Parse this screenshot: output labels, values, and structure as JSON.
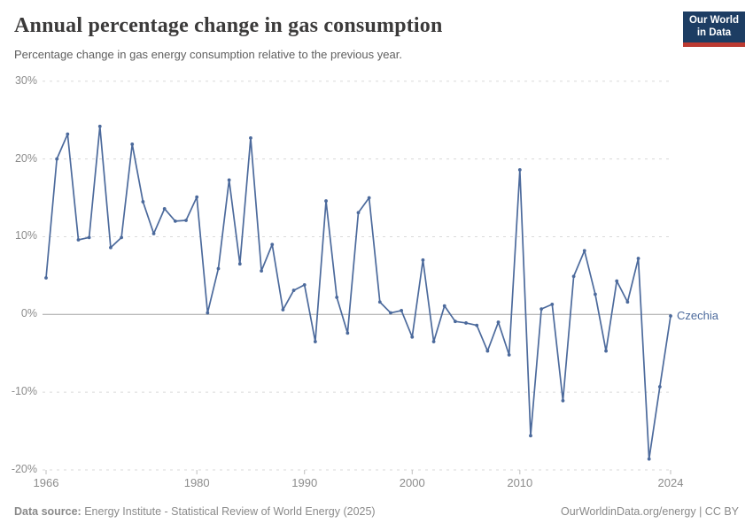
{
  "header": {
    "title": "Annual percentage change in gas consumption",
    "subtitle": "Percentage change in gas energy consumption relative to the previous year.",
    "logo": {
      "line1": "Our World",
      "line2": "in Data"
    }
  },
  "chart_data": {
    "type": "line",
    "title": "Annual percentage change in gas consumption",
    "subtitle": "Percentage change in gas energy consumption relative to the previous year.",
    "xlim": [
      1966,
      2024
    ],
    "ylim": [
      -20,
      30
    ],
    "yticks": [
      30,
      20,
      10,
      0,
      -10,
      -20
    ],
    "ytick_suffix": "%",
    "xticks": [
      1966,
      1980,
      1990,
      2000,
      2010,
      2024
    ],
    "grid": "horizontal-dashed, solid zero line",
    "legend_position": "end-of-line label",
    "series": [
      {
        "name": "Czechia",
        "color": "#4C6A9C",
        "x": [
          1966,
          1967,
          1968,
          1969,
          1970,
          1971,
          1972,
          1973,
          1974,
          1975,
          1976,
          1977,
          1978,
          1979,
          1980,
          1981,
          1982,
          1983,
          1984,
          1985,
          1986,
          1987,
          1988,
          1989,
          1990,
          1991,
          1992,
          1993,
          1994,
          1995,
          1996,
          1997,
          1998,
          1999,
          2000,
          2001,
          2002,
          2003,
          2004,
          2005,
          2006,
          2007,
          2008,
          2009,
          2010,
          2011,
          2012,
          2013,
          2014,
          2015,
          2016,
          2017,
          2018,
          2019,
          2020,
          2021,
          2022,
          2023,
          2024
        ],
        "values": [
          4.7,
          20.0,
          23.2,
          9.6,
          9.9,
          24.2,
          8.6,
          9.9,
          21.9,
          14.5,
          10.4,
          13.6,
          12.0,
          12.1,
          15.1,
          0.2,
          5.9,
          17.3,
          6.5,
          22.7,
          5.6,
          9.0,
          0.6,
          3.1,
          3.8,
          -3.5,
          14.6,
          2.2,
          -2.4,
          13.1,
          15.0,
          1.6,
          0.2,
          0.5,
          -2.9,
          7.0,
          -3.5,
          1.1,
          -0.9,
          -1.1,
          -1.4,
          -4.7,
          -1.0,
          -5.2,
          18.6,
          -15.6,
          0.7,
          1.3,
          -11.1,
          4.9,
          8.2,
          2.6,
          -4.7,
          4.3,
          1.6,
          7.2,
          -18.6,
          -9.3,
          -0.2
        ]
      }
    ]
  },
  "colors": {
    "line": "#4C6A9C",
    "gridline": "#dadada",
    "zero_line": "#a3a3a3",
    "tick_label": "#8c8c8c",
    "logo_bg": "#1d3d63",
    "logo_bar": "#bc3a31"
  },
  "footer": {
    "source_label": "Data source:",
    "source_text": " Energy Institute - Statistical Review of World Energy (2025)",
    "right_text": "OurWorldinData.org/energy | CC BY"
  }
}
